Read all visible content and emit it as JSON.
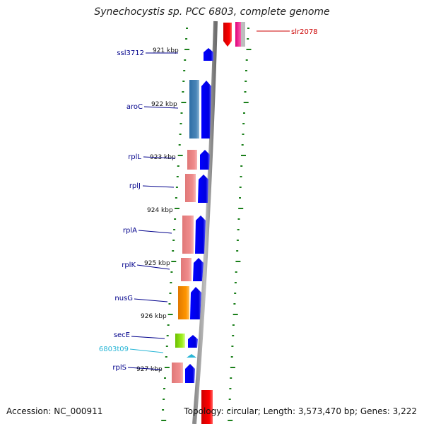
{
  "title": "Synechocystis sp. PCC 6803, complete genome",
  "footer": {
    "accession": "Accession: NC_000911",
    "summary": "Topology: circular; Length: 3,573,470 bp; Genes: 3,222"
  },
  "kbp_labels": [
    "921 kbp",
    "922 kbp",
    "923 kbp",
    "924 kbp",
    "925 kbp",
    "926 kbp",
    "927 kbp"
  ],
  "genes": [
    {
      "name": "slr2078",
      "color": "#cc0000",
      "strand": "reverse"
    },
    {
      "name": "ssl3712",
      "color": "#00008b",
      "strand": "forward"
    },
    {
      "name": "aroC",
      "color": "#00008b",
      "strand": "forward"
    },
    {
      "name": "rplL",
      "color": "#00008b",
      "strand": "forward"
    },
    {
      "name": "rplJ",
      "color": "#00008b",
      "strand": "forward"
    },
    {
      "name": "rplA",
      "color": "#00008b",
      "strand": "forward"
    },
    {
      "name": "rplK",
      "color": "#00008b",
      "strand": "forward"
    },
    {
      "name": "nusG",
      "color": "#00008b",
      "strand": "forward"
    },
    {
      "name": "secE",
      "color": "#00008b",
      "strand": "forward"
    },
    {
      "name": "6803t09",
      "color": "#29b6d6",
      "strand": "forward"
    },
    {
      "name": "rplS",
      "color": "#00008b",
      "strand": "forward"
    }
  ]
}
